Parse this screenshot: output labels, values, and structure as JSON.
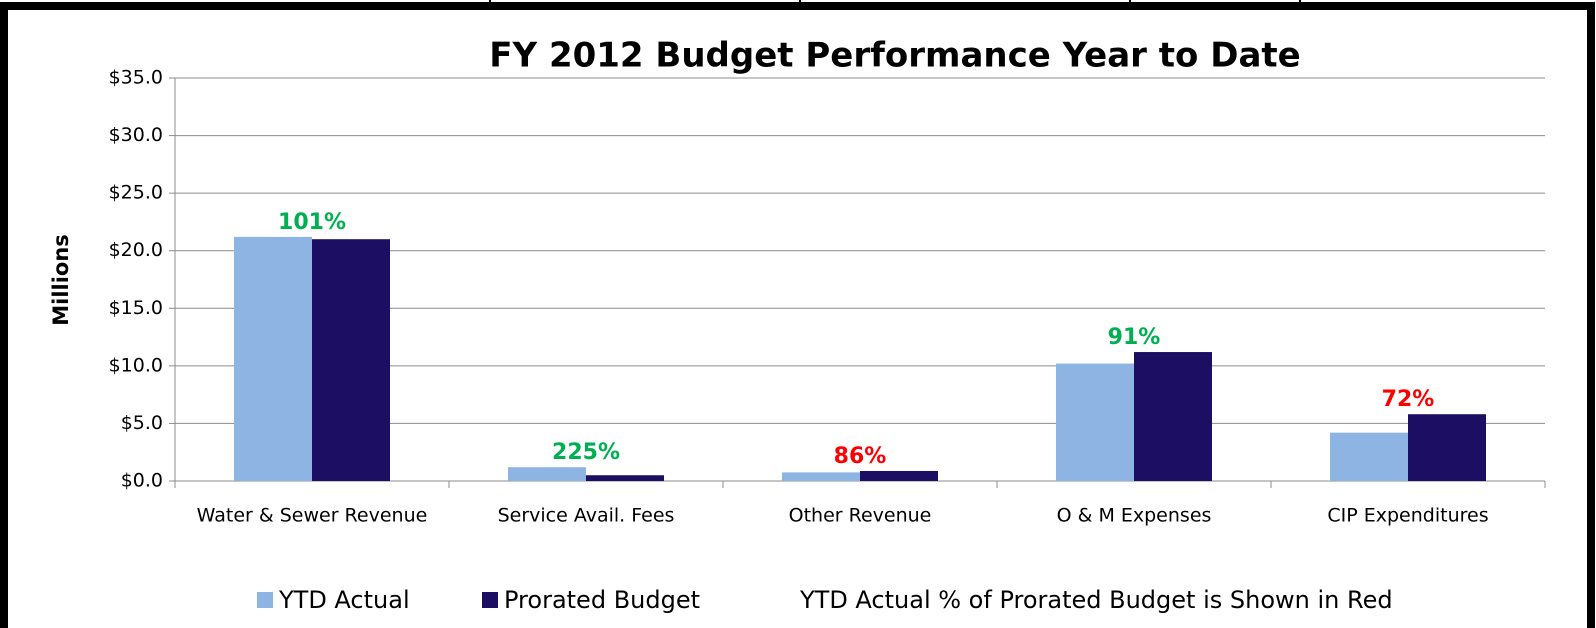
{
  "chart_data": {
    "type": "bar",
    "title": "FY 2012 Budget Performance Year to Date",
    "y_axis_label": "Millions",
    "categories": [
      "Water & Sewer Revenue",
      "Service Avail. Fees",
      "Other Revenue",
      "O & M Expenses",
      "CIP Expenditures"
    ],
    "series": [
      {
        "name": "YTD Actual",
        "color": "#8eb4e3",
        "values": [
          21.2,
          1.2,
          0.75,
          10.2,
          4.2
        ]
      },
      {
        "name": "Prorated Budget",
        "color": "#1c0f63",
        "values": [
          21.0,
          0.5,
          0.87,
          11.2,
          5.8
        ]
      }
    ],
    "ratio_labels": [
      "101%",
      "225%",
      "86%",
      "91%",
      "72%"
    ],
    "ratio_colors": [
      "#00b050",
      "#00b050",
      "#ff0000",
      "#00b050",
      "#ff0000"
    ],
    "legend_note": "YTD Actual % of Prorated Budget is Shown in Red",
    "ylim": [
      0,
      35
    ],
    "yticks": [
      {
        "value": 0,
        "label": "$0.0"
      },
      {
        "value": 5,
        "label": "$5.0"
      },
      {
        "value": 10,
        "label": "$10.0"
      },
      {
        "value": 15,
        "label": "$15.0"
      },
      {
        "value": 20,
        "label": "$20.0"
      },
      {
        "value": 25,
        "label": "$25.0"
      },
      {
        "value": 30,
        "label": "$30.0"
      },
      {
        "value": 35,
        "label": "$35.0"
      }
    ],
    "grid": true,
    "legend": "bottom"
  }
}
